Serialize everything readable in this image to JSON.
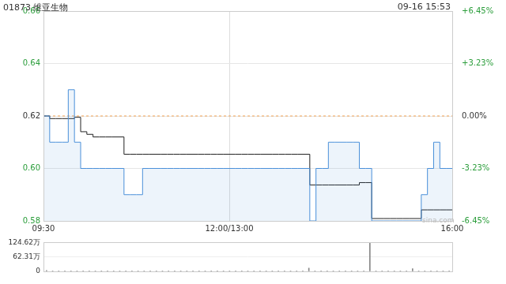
{
  "chart_data": [
    {
      "type": "line",
      "title": "01873 维亚生物",
      "subtitle": "09-16 15:53",
      "annotations": [
        "sina.com"
      ],
      "categories": [
        "09:30",
        null,
        null,
        null,
        null,
        null,
        null,
        null,
        null,
        null,
        null,
        null,
        null,
        null,
        null,
        null,
        null,
        null,
        null,
        null,
        null,
        null,
        null,
        null,
        null,
        null,
        null,
        null,
        null,
        null,
        "12:00/13:00",
        null,
        null,
        null,
        null,
        null,
        null,
        null,
        null,
        null,
        null,
        null,
        null,
        null,
        null,
        null,
        null,
        null,
        null,
        null,
        null,
        null,
        null,
        null,
        null,
        null,
        null,
        null,
        null,
        null,
        null,
        null,
        null,
        null,
        null,
        null,
        "16:00"
      ],
      "series": [
        {
          "type": "area",
          "color": "#4a90d9",
          "values": [
            0.62,
            0.61,
            0.61,
            0.61,
            0.63,
            0.61,
            0.6,
            0.6,
            0.6,
            0.6,
            0.6,
            0.6,
            0.6,
            0.59,
            0.59,
            0.59,
            0.6,
            0.6,
            0.6,
            0.6,
            0.6,
            0.6,
            0.6,
            0.6,
            0.6,
            0.6,
            0.6,
            0.6,
            0.6,
            0.6,
            0.6,
            0.6,
            0.6,
            0.6,
            0.6,
            0.6,
            0.6,
            0.6,
            0.6,
            0.6,
            0.6,
            0.6,
            0.6,
            0.58,
            0.6,
            0.6,
            0.61,
            0.61,
            0.61,
            0.61,
            0.61,
            0.6,
            0.6,
            0.58,
            0.58,
            0.58,
            0.58,
            0.58,
            0.58,
            0.58,
            0.58,
            0.59,
            0.6,
            0.61,
            0.6,
            0.6,
            0.6
          ]
        },
        {
          "type": "line",
          "color": "#222222",
          "values": [
            0.62,
            0.619,
            0.619,
            0.619,
            0.619,
            0.6195,
            0.614,
            0.613,
            0.612,
            0.612,
            0.612,
            0.612,
            0.612,
            0.6054,
            0.6054,
            0.6054,
            0.6054,
            0.6054,
            0.6054,
            0.6054,
            0.6054,
            0.6054,
            0.6054,
            0.6054,
            0.6054,
            0.6054,
            0.6054,
            0.6054,
            0.6054,
            0.6054,
            0.6054,
            0.6054,
            0.6054,
            0.6054,
            0.6054,
            0.6054,
            0.6054,
            0.6054,
            0.6054,
            0.6054,
            0.6054,
            0.6054,
            0.6054,
            0.5937,
            0.5937,
            0.5937,
            0.5937,
            0.5937,
            0.5937,
            0.5937,
            0.5937,
            0.5946,
            0.5946,
            0.5809,
            0.5809,
            0.5809,
            0.5809,
            0.5809,
            0.5809,
            0.5809,
            0.5809,
            0.5842,
            0.5842,
            0.5842,
            0.5842,
            0.5842,
            0.5842
          ]
        },
        {
          "type": "line",
          "color": "#f0a050",
          "line_style": "dashed",
          "values": [
            0.62,
            0.62,
            0.62,
            0.62,
            0.62,
            0.62,
            0.62,
            0.62,
            0.62,
            0.62,
            0.62,
            0.62,
            0.62,
            0.62,
            0.62,
            0.62,
            0.62,
            0.62,
            0.62,
            0.62,
            0.62,
            0.62,
            0.62,
            0.62,
            0.62,
            0.62,
            0.62,
            0.62,
            0.62,
            0.62,
            0.62,
            0.62,
            0.62,
            0.62,
            0.62,
            0.62,
            0.62,
            0.62,
            0.62,
            0.62,
            0.62,
            0.62,
            0.62,
            0.62,
            0.62,
            0.62,
            0.62,
            0.62,
            0.62,
            0.62,
            0.62,
            0.62,
            0.62,
            0.62,
            0.62,
            0.62,
            0.62,
            0.62,
            0.62,
            0.62,
            0.62,
            0.62,
            0.62,
            0.62,
            0.62,
            0.62,
            0.62
          ]
        }
      ],
      "ylim": [
        0.58,
        0.66
      ],
      "yticks": [
        {
          "value": 0.58,
          "label": "0.58"
        },
        {
          "value": 0.6,
          "label": "0.60"
        },
        {
          "value": 0.62,
          "label": "0.62"
        },
        {
          "value": 0.64,
          "label": "0.64"
        },
        {
          "value": 0.66,
          "label": "0.66"
        }
      ],
      "y2lim": [
        -6.45,
        6.45
      ],
      "y2ticks": [
        {
          "value": -6.45,
          "label": "-6.45%"
        },
        {
          "value": -3.23,
          "label": "-3.23%"
        },
        {
          "value": 0,
          "label": "0.00%"
        },
        {
          "value": 3.23,
          "label": "+3.23%"
        },
        {
          "value": 6.45,
          "label": "+6.45%"
        }
      ],
      "grid": true
    },
    {
      "type": "bar",
      "color": "#888888",
      "values": [
        4,
        2,
        1,
        1,
        2,
        1,
        1,
        1,
        0.5,
        0.5,
        1,
        0.5,
        0.5,
        1,
        0.5,
        0.5,
        0.5,
        0.5,
        0.3,
        0.3,
        0.3,
        0.3,
        0.3,
        0.3,
        0.3,
        0.3,
        0.3,
        0.3,
        0.3,
        0.3,
        0.3,
        0.3,
        0.3,
        0.3,
        0.3,
        0.3,
        0.3,
        0.3,
        0.3,
        0.3,
        0.5,
        0.5,
        1,
        14,
        2,
        1,
        1,
        1,
        0.5,
        0.5,
        1,
        0.5,
        1,
        124,
        1,
        0.5,
        0.5,
        0.5,
        0.5,
        1,
        12,
        2,
        1,
        2,
        1,
        0.5,
        1
      ],
      "ylim": [
        0,
        124.62
      ],
      "yticks": [
        0,
        {
          "value": 62.31,
          "label": "62.31万"
        },
        {
          "value": 124.62,
          "label": "124.62万"
        }
      ],
      "tick_labels": "y",
      "grid": true
    }
  ]
}
